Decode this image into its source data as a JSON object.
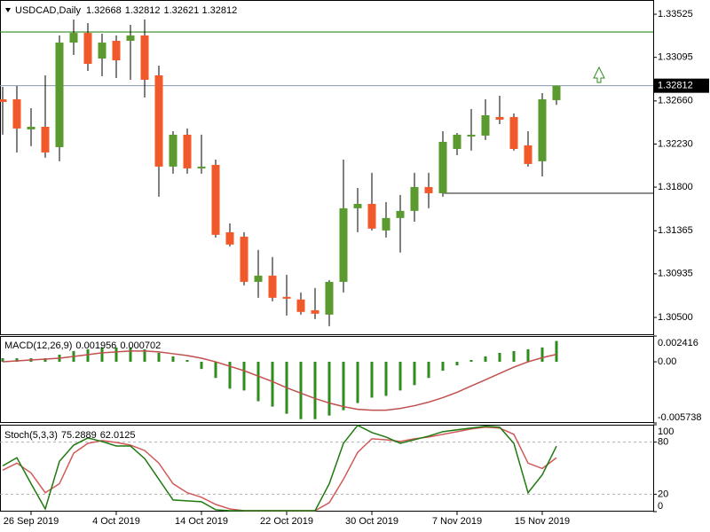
{
  "chart_data": [
    {
      "type": "candlestick",
      "title": "USDCAD,Daily",
      "categories": [
        null,
        null,
        "26 Sep 2019",
        null,
        null,
        null,
        null,
        null,
        "4 Oct 2019",
        null,
        null,
        null,
        null,
        null,
        "14 Oct 2019",
        null,
        null,
        null,
        null,
        null,
        "22 Oct 2019",
        null,
        null,
        null,
        null,
        null,
        "30 Oct 2019",
        null,
        null,
        null,
        null,
        null,
        "7 Nov 2019",
        null,
        null,
        null,
        null,
        null,
        "15 Nov 2019",
        null
      ],
      "open": [
        1.32676,
        1.32676,
        1.32376,
        1.32402,
        1.32199,
        1.33242,
        1.33339,
        1.33083,
        1.3326,
        1.3326,
        1.33313,
        1.32915,
        1.32005,
        1.32323,
        1.31987,
        1.32022,
        1.3135,
        1.31306,
        1.30855,
        1.30917,
        1.30705,
        1.30679,
        1.30572,
        1.30528,
        1.30855,
        1.31589,
        1.31633,
        1.31368,
        1.31492,
        1.31563,
        1.31801,
        1.31739,
        1.32181,
        1.32305,
        1.32314,
        1.325,
        1.325,
        1.32217,
        1.32058,
        1.32668
      ],
      "high": [
        1.328,
        1.32809,
        1.32588,
        1.32915,
        1.33313,
        1.33472,
        1.33437,
        1.33331,
        1.33313,
        1.33419,
        1.33472,
        1.33012,
        1.32358,
        1.32385,
        1.32323,
        1.32075,
        1.31439,
        1.3135,
        1.31174,
        1.31103,
        1.30926,
        1.30749,
        1.30793,
        1.30873,
        1.32075,
        1.31792,
        1.31943,
        1.31651,
        1.31722,
        1.31943,
        1.31943,
        1.32358,
        1.3234,
        1.32579,
        1.32676,
        1.32712,
        1.32535,
        1.32358,
        1.32738,
        1.32812
      ],
      "low": [
        1.32323,
        1.32146,
        1.32208,
        1.32093,
        1.32058,
        1.33118,
        1.32959,
        1.32906,
        1.32889,
        1.32871,
        1.32694,
        1.31704,
        1.31934,
        1.31934,
        1.31934,
        1.31297,
        1.31209,
        1.3082,
        1.30696,
        1.30661,
        1.30519,
        1.30528,
        1.30484,
        1.30413,
        1.30749,
        1.3135,
        1.31368,
        1.31297,
        1.31147,
        1.31456,
        1.31589,
        1.31704,
        1.32119,
        1.32164,
        1.3227,
        1.32429,
        1.32164,
        1.32005,
        1.31907,
        1.32621
      ],
      "close": [
        1.3265,
        1.32385,
        1.32402,
        1.32146,
        1.33242,
        1.33339,
        1.3303,
        1.33242,
        1.33065,
        1.33313,
        1.32871,
        1.32005,
        1.32323,
        1.31987,
        1.32005,
        1.31324,
        1.31227,
        1.30855,
        1.30917,
        1.30696,
        1.30687,
        1.30555,
        1.30537,
        1.30855,
        1.31589,
        1.31633,
        1.31386,
        1.31492,
        1.31563,
        1.31801,
        1.31739,
        1.32252,
        1.32323,
        1.32323,
        1.32517,
        1.32473,
        1.32181,
        1.32031,
        1.32676,
        1.32812
      ],
      "up_color": "#5a9a2e",
      "down_color": "#f2592a",
      "ylim": [
        1.30332,
        1.33667
      ],
      "yticks": [
        1.33525,
        1.33095,
        {
          "value": 1.3266,
          "label": "1.32660"
        },
        {
          "value": 1.3223,
          "label": "1.32230"
        },
        {
          "value": 1.318,
          "label": "1.31800"
        },
        1.31365,
        1.30935,
        {
          "value": 1.305,
          "label": "1.30500"
        }
      ],
      "hlines": [
        {
          "value": 1.33348,
          "color": "#2e8b1e"
        },
        {
          "value": 1.31739,
          "color": "#333333"
        }
      ]
    },
    {
      "type": "macd",
      "title": "MACD(12,26,9)",
      "histogram": [
        0.000336,
        0.000336,
        0.000336,
        0.000336,
        0.000673,
        0.001009,
        0.001177,
        0.001346,
        0.001346,
        0.001346,
        0.001177,
        0.000841,
        0.000505,
        0.000168,
        -0.000673,
        -0.001514,
        -0.002523,
        -0.002691,
        -0.0037,
        -0.004205,
        -0.004878,
        -0.005382,
        -0.005382,
        -0.005046,
        -0.004541,
        -0.003869,
        -0.003364,
        -0.003196,
        -0.002691,
        -0.002187,
        -0.001514,
        -0.000841,
        -0.000336,
        0.000168,
        0.000505,
        0.000841,
        0.001009,
        0.001177,
        0.001346,
        0.001956
      ],
      "signal": [
        0,
        8.4e-05,
        0.000168,
        0.000252,
        0.000336,
        0.000505,
        0.000673,
        0.000841,
        0.000925,
        0.001009,
        0.001009,
        0.000925,
        0.000757,
        0.000589,
        0.000336,
        0,
        -0.000421,
        -0.000841,
        -0.001346,
        -0.00185,
        -0.002439,
        -0.002944,
        -0.003448,
        -0.003869,
        -0.004205,
        -0.004457,
        -0.004541,
        -0.004541,
        -0.004373,
        -0.004121,
        -0.003785,
        -0.003364,
        -0.002859,
        -0.002271,
        -0.001682,
        -0.001093,
        -0.000505,
        0,
        0.000389,
        0.000702
      ],
      "histogram_color": "#2e8b1e",
      "signal_color": "#c0504d",
      "ylim": [
        -0.005738,
        0.002416
      ],
      "yticks": [
        0.002416,
        {
          "value": 0,
          "label": "0.00"
        },
        -0.005738
      ]
    },
    {
      "type": "stochastic",
      "title": "Stoch(5,3,3)",
      "main": [
        52.7,
        62.0,
        32.1,
        3.1,
        57.9,
        76.5,
        84.8,
        80.7,
        75.5,
        75.5,
        61.0,
        37.2,
        13.4,
        12.4,
        11.4,
        2.1,
        1.0,
        1.0,
        1.0,
        1.0,
        1.0,
        1.0,
        1.0,
        32.1,
        78.6,
        99.3,
        91.0,
        85.8,
        78.6,
        82.7,
        86.9,
        92.0,
        94.1,
        96.2,
        98.2,
        97.2,
        78.6,
        21.7,
        42.4,
        75.2889
      ],
      "signal": [
        47.6,
        55.8,
        44.5,
        21.7,
        32.1,
        67.2,
        78.6,
        81.7,
        79.6,
        76.5,
        70.3,
        55.8,
        32.1,
        21.7,
        16.5,
        8.3,
        3.1,
        1.0,
        1.0,
        1.0,
        1.0,
        1.0,
        1.0,
        10.3,
        37.2,
        68.2,
        83.8,
        82.7,
        80.7,
        83.8,
        85.8,
        88.9,
        92.0,
        95.1,
        97.2,
        96.2,
        88.9,
        55.8,
        49.6,
        62.0125
      ],
      "main_color": "#1f7a10",
      "signal_color": "#d05a5a",
      "ylim": [
        0,
        100
      ],
      "yticks": [
        100,
        80,
        20,
        0
      ],
      "levels": [
        20,
        80
      ]
    }
  ]
}
